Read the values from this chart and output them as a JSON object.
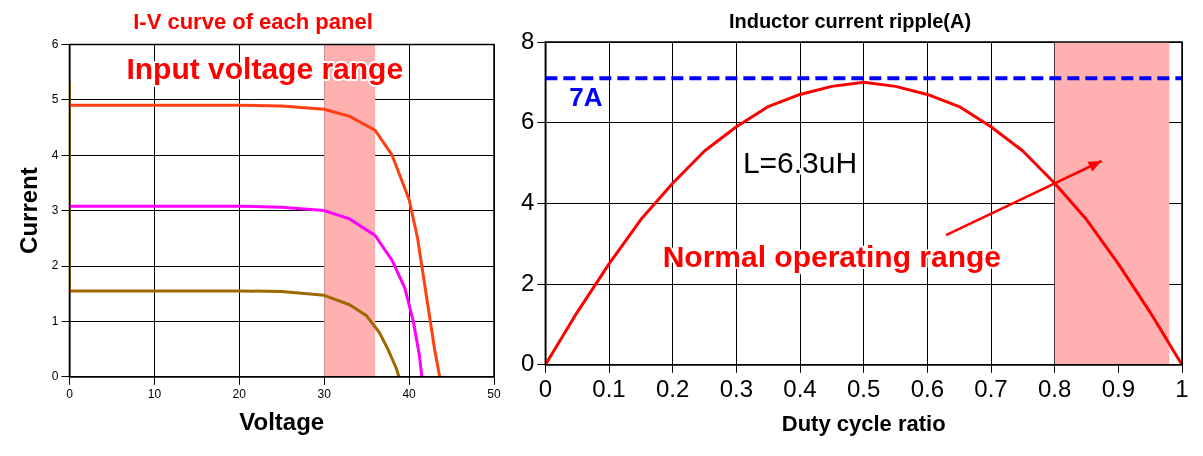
{
  "chart_data": [
    {
      "type": "line",
      "title": "I-V curve of each panel",
      "xlabel": "Voltage",
      "ylabel": "Current",
      "xlim": [
        0,
        50
      ],
      "xticks": [
        0,
        10,
        20,
        30,
        40,
        50
      ],
      "ylim": [
        0,
        6
      ],
      "yticks": [
        0,
        1,
        2,
        3,
        4,
        5,
        6
      ],
      "grid": true,
      "legend": false,
      "marker": "none",
      "bands": [
        {
          "axis": "x",
          "from": 30,
          "to": 36,
          "label": "Input voltage range",
          "color": "#ffb0b0"
        }
      ],
      "series": [
        {
          "color": "#ff4010",
          "x": [
            0,
            10,
            20,
            25,
            30,
            33,
            36,
            38,
            40,
            41,
            42,
            43,
            43.6
          ],
          "values": [
            4.9,
            4.9,
            4.9,
            4.89,
            4.83,
            4.7,
            4.45,
            4.0,
            3.2,
            2.5,
            1.5,
            0.5,
            0
          ]
        },
        {
          "color": "#ff00ff",
          "x": [
            0,
            20,
            25,
            30,
            33,
            36,
            38,
            39.5,
            40.5,
            41.2,
            41.5
          ],
          "values": [
            3.08,
            3.08,
            3.06,
            3.0,
            2.85,
            2.55,
            2.1,
            1.6,
            1.0,
            0.4,
            0
          ]
        },
        {
          "color": "#a06800",
          "x": [
            0,
            0,
            20,
            25,
            30,
            33,
            35,
            36.5,
            37.5,
            38.5,
            38.8
          ],
          "values": [
            5.3,
            1.55,
            1.55,
            1.54,
            1.47,
            1.3,
            1.1,
            0.8,
            0.5,
            0.15,
            0
          ]
        }
      ]
    },
    {
      "type": "line",
      "title": "Inductor current ripple(A)",
      "xlabel": "Duty cycle ratio",
      "xlim": [
        0,
        1
      ],
      "xticks": [
        0,
        0.1,
        0.2,
        0.3,
        0.4,
        0.5,
        0.6,
        0.7,
        0.8,
        0.9,
        1
      ],
      "ylim": [
        0,
        8
      ],
      "yticks": [
        0,
        2,
        4,
        6,
        8
      ],
      "grid": true,
      "legend": false,
      "marker": "none",
      "annotations": [
        "L=6.3uH"
      ],
      "ref_lines": [
        {
          "axis": "y",
          "value": 7.1,
          "label": "7A",
          "color": "#0000ff",
          "line_style": "dashed"
        }
      ],
      "bands": [
        {
          "axis": "x",
          "from": 0.8,
          "to": 0.98,
          "label": "Normal operating range",
          "color": "#ffb0b0"
        }
      ],
      "series": [
        {
          "color": "#ff0000",
          "x": [
            0,
            0.05,
            0.1,
            0.15,
            0.2,
            0.25,
            0.3,
            0.35,
            0.4,
            0.45,
            0.5,
            0.55,
            0.6,
            0.65,
            0.7,
            0.75,
            0.8,
            0.85,
            0.9,
            0.95,
            1
          ],
          "values": [
            0,
            1.3,
            2.5,
            3.6,
            4.5,
            5.3,
            5.9,
            6.4,
            6.7,
            6.9,
            7.0,
            6.9,
            6.7,
            6.4,
            5.9,
            5.3,
            4.5,
            3.6,
            2.5,
            1.3,
            0
          ]
        }
      ]
    }
  ]
}
